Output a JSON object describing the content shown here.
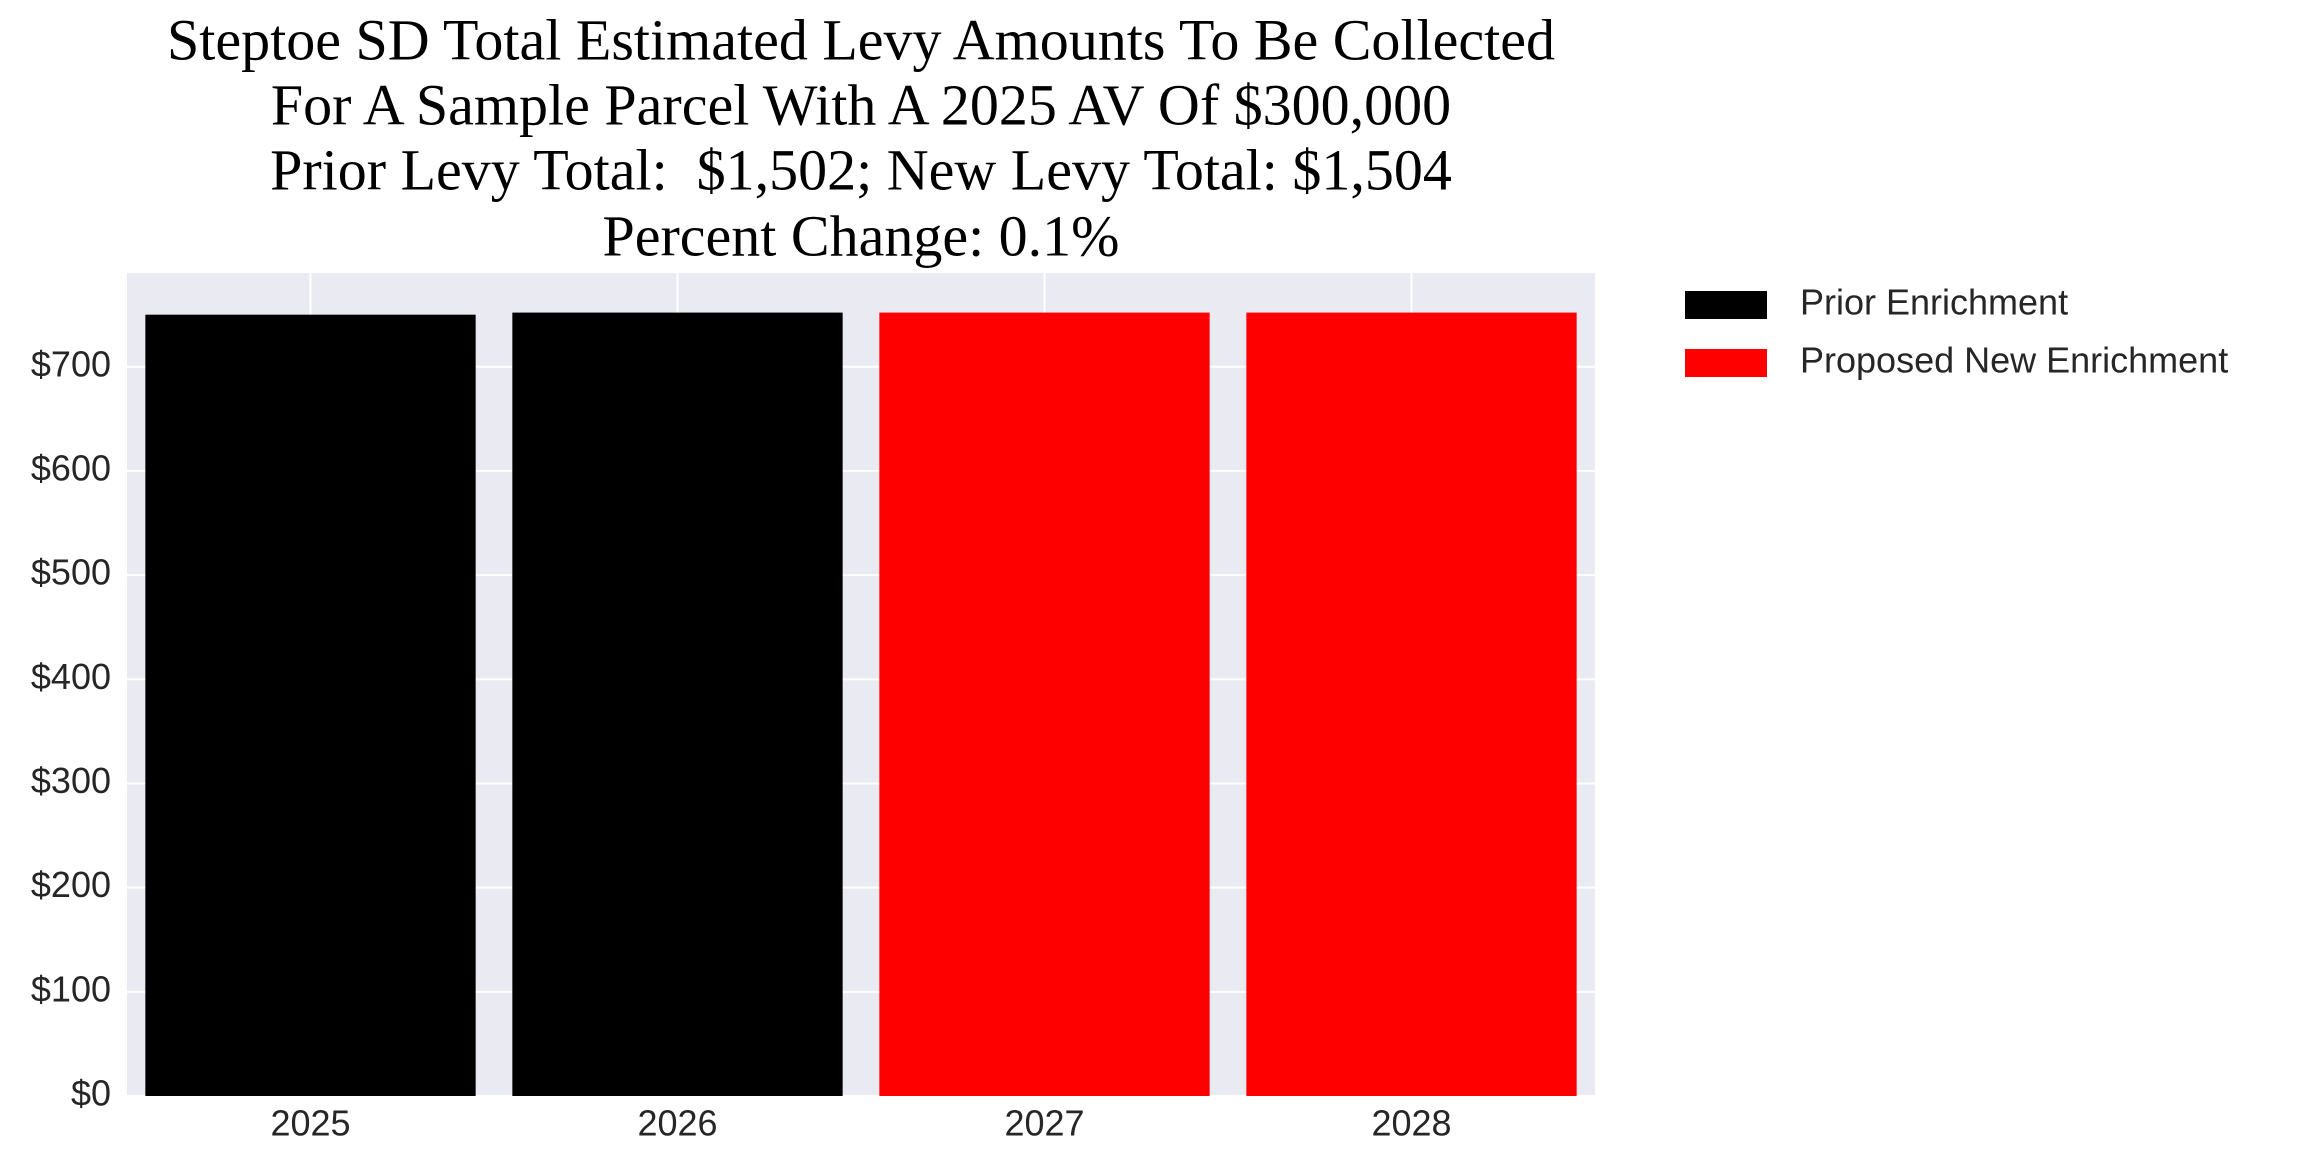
{
  "chart_data": {
    "type": "bar",
    "title": [
      "Steptoe SD Total Estimated Levy Amounts To Be Collected",
      "For A Sample Parcel With A 2025 AV Of $300,000",
      "Prior Levy Total:  $1,502; New Levy Total: $1,504",
      "Percent Change: 0.1%"
    ],
    "categories": [
      "2025",
      "2026",
      "2027",
      "2028"
    ],
    "series": [
      {
        "name": "Prior Enrichment",
        "color": "#000000",
        "values": [
          750,
          752,
          null,
          null
        ]
      },
      {
        "name": "Proposed New Enrichment",
        "color": "#ff0000",
        "values": [
          null,
          null,
          752,
          752
        ]
      }
    ],
    "ylim": [
      0,
      790
    ],
    "yticks": [
      {
        "value": 0,
        "label": "$0"
      },
      {
        "value": 100,
        "label": "$100"
      },
      {
        "value": 200,
        "label": "$200"
      },
      {
        "value": 300,
        "label": "$300"
      },
      {
        "value": 400,
        "label": "$400"
      },
      {
        "value": 500,
        "label": "$500"
      },
      {
        "value": 600,
        "label": "$600"
      },
      {
        "value": 700,
        "label": "$700"
      }
    ],
    "grid": true,
    "legend": "right"
  }
}
